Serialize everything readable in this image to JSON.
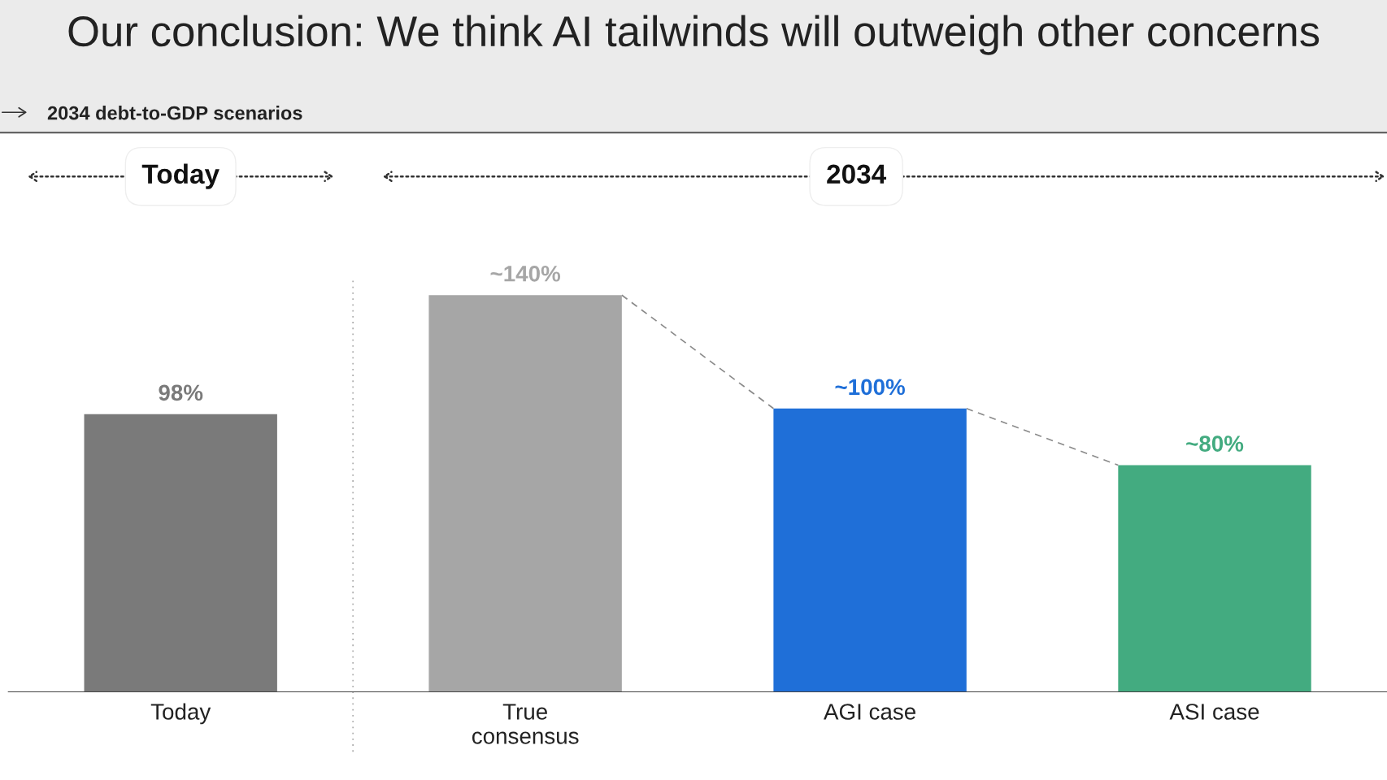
{
  "chart_data": {
    "type": "bar",
    "title": "Our conclusion: We think AI tailwinds will outweigh other concerns",
    "subtitle": "2034 debt-to-GDP scenarios",
    "categories": [
      "Today",
      "True\nconsensus",
      "AGI case",
      "ASI case"
    ],
    "series": [
      {
        "values": [
          98,
          140,
          100,
          80
        ],
        "colors": [
          "#7a7a7a",
          "#a6a6a6",
          "#1f6fd8",
          "#43ab80"
        ],
        "value_labels": [
          "98%",
          "~140%",
          "~100%",
          "~80%"
        ]
      }
    ],
    "annotations": [
      "Today",
      "2034"
    ],
    "grid": false,
    "legend": false
  }
}
